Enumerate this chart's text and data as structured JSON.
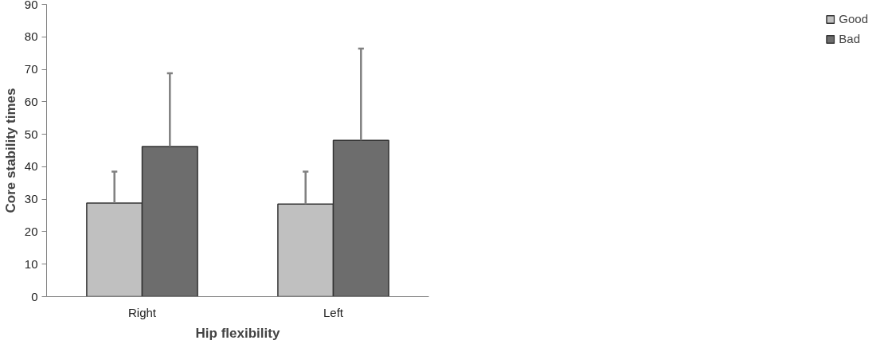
{
  "chart_data": {
    "type": "bar",
    "xlabel": "Hip flexibility",
    "ylabel": "Core stability times",
    "categories": [
      "Right",
      "Left"
    ],
    "series": [
      {
        "name": "Good",
        "color": "#c0c0c0",
        "values": [
          28.8,
          28.5
        ],
        "errors": [
          [
            28.8,
            38.5
          ],
          [
            28.5,
            38.5
          ]
        ]
      },
      {
        "name": "Bad",
        "color": "#6d6d6d",
        "values": [
          46.2,
          48.1
        ],
        "errors": [
          [
            46.2,
            68.8
          ],
          [
            48.1,
            76.4
          ]
        ]
      }
    ],
    "ylim": [
      0,
      90
    ],
    "yticks": [
      0,
      10,
      20,
      30,
      40,
      50,
      60,
      70,
      80,
      90
    ],
    "grid": false,
    "legend": "right"
  }
}
